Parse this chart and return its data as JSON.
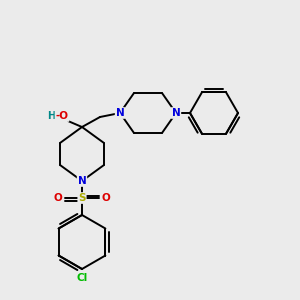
{
  "bg_color": "#ebebeb",
  "colors": {
    "C": "#000000",
    "N": "#0000dd",
    "O": "#dd0000",
    "S": "#aaaa00",
    "Cl": "#00bb00",
    "H": "#008888",
    "bond": "#000000"
  },
  "bond_lw": 1.4,
  "font_size": 7.5,
  "figsize": [
    3.0,
    3.0
  ],
  "dpi": 100
}
